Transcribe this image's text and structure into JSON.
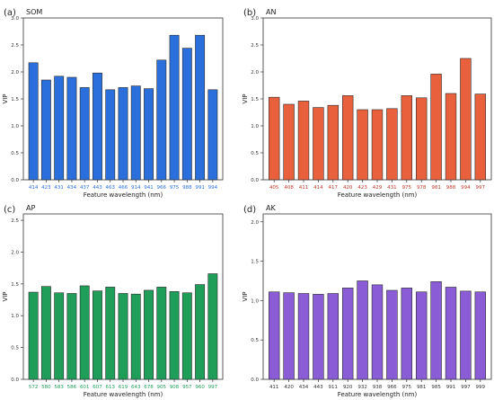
{
  "chart_data": [
    {
      "type": "bar",
      "panel": "(a)",
      "title": "SOM",
      "xlabel": "Feature wavelength (nm)",
      "ylabel": "VIP",
      "ylim": [
        0,
        3.0
      ],
      "yticks": [
        "0.0",
        "0.5",
        "1.0",
        "1.5",
        "2.0",
        "2.5",
        "3.0"
      ],
      "categories": [
        "414",
        "423",
        "431",
        "434",
        "437",
        "443",
        "463",
        "466",
        "914",
        "941",
        "966",
        "975",
        "988",
        "991",
        "994"
      ],
      "values": [
        2.17,
        1.85,
        1.92,
        1.9,
        1.71,
        1.98,
        1.67,
        1.71,
        1.74,
        1.69,
        2.22,
        2.68,
        2.44,
        2.68,
        1.67
      ],
      "bar_color": "#2a6fdb",
      "tick_color": "#2a6fdb"
    },
    {
      "type": "bar",
      "panel": "(b)",
      "title": "AN",
      "xlabel": "Feature wavelength (nm)",
      "ylabel": "VIP",
      "ylim": [
        0,
        3.0
      ],
      "yticks": [
        "0.0",
        "0.5",
        "1.0",
        "1.5",
        "2.0",
        "2.5",
        "3.0"
      ],
      "categories": [
        "405",
        "408",
        "411",
        "414",
        "417",
        "420",
        "423",
        "429",
        "431",
        "975",
        "978",
        "981",
        "988",
        "994",
        "997"
      ],
      "values": [
        1.53,
        1.4,
        1.46,
        1.34,
        1.38,
        1.56,
        1.3,
        1.3,
        1.32,
        1.56,
        1.52,
        1.96,
        1.6,
        2.25,
        1.59
      ],
      "bar_color": "#e8603c",
      "tick_color": "#c0392b"
    },
    {
      "type": "bar",
      "panel": "(c)",
      "title": "AP",
      "xlabel": "Feature wavelength (nm)",
      "ylabel": "VIP",
      "ylim": [
        0,
        2.6
      ],
      "yticks": [
        "0.0",
        "0.5",
        "1.0",
        "1.5",
        "2.0",
        "2.5"
      ],
      "categories": [
        "572",
        "580",
        "583",
        "586",
        "601",
        "607",
        "613",
        "619",
        "643",
        "678",
        "905",
        "908",
        "957",
        "960",
        "997"
      ],
      "values": [
        1.37,
        1.46,
        1.36,
        1.35,
        1.47,
        1.39,
        1.45,
        1.35,
        1.34,
        1.4,
        1.45,
        1.38,
        1.36,
        1.49,
        1.66
      ],
      "bar_color": "#1f9e5a",
      "tick_color": "#1f9e5a"
    },
    {
      "type": "bar",
      "panel": "(d)",
      "title": "AK",
      "xlabel": "Feature wavelength (nm)",
      "ylabel": "VIP",
      "ylim": [
        0,
        2.1
      ],
      "yticks": [
        "0.0",
        "0.5",
        "1.0",
        "1.5",
        "2.0"
      ],
      "categories": [
        "411",
        "420",
        "434",
        "443",
        "911",
        "920",
        "932",
        "938",
        "966",
        "975",
        "981",
        "985",
        "991",
        "997",
        "999"
      ],
      "values": [
        1.11,
        1.1,
        1.09,
        1.08,
        1.09,
        1.16,
        1.25,
        1.2,
        1.13,
        1.16,
        1.11,
        1.24,
        1.17,
        1.12,
        1.11
      ],
      "bar_color": "#8a5cd6",
      "tick_color": "#333333"
    }
  ]
}
